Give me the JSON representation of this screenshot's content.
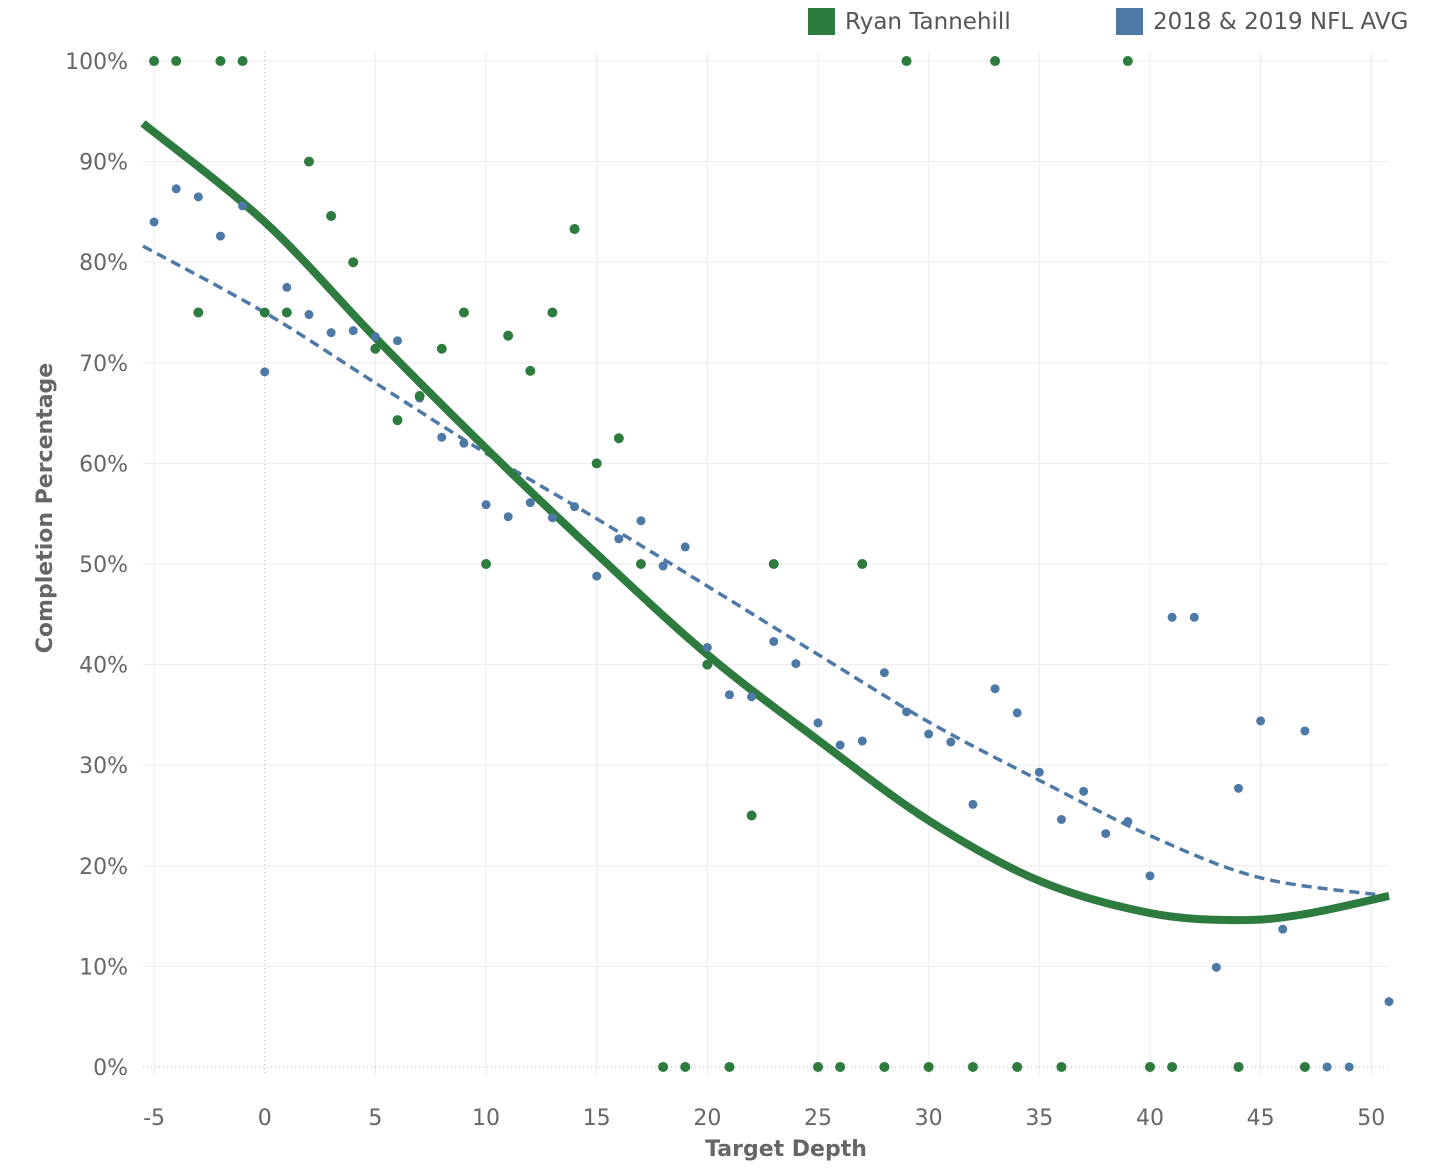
{
  "legend": {
    "items": [
      {
        "label": "Ryan Tannehill",
        "color": "#2e7b3f"
      },
      {
        "label": "2018 & 2019 NFL AVG",
        "color": "#4e79a7"
      }
    ]
  },
  "chart_data": {
    "type": "scatter",
    "xlabel": "Target Depth",
    "ylabel": "Completion Percentage",
    "xlim": [
      -5.5,
      50.8
    ],
    "ylim": [
      -0.9,
      100.9
    ],
    "xticks": [
      -5,
      0,
      5,
      10,
      15,
      20,
      25,
      30,
      35,
      40,
      45,
      50
    ],
    "xtick_labels": [
      "-5",
      "0",
      "5",
      "10",
      "15",
      "20",
      "25",
      "30",
      "35",
      "40",
      "45",
      "50"
    ],
    "yticks": [
      0,
      10,
      20,
      30,
      40,
      50,
      60,
      70,
      80,
      90,
      100
    ],
    "ytick_labels": [
      "0%",
      "10%",
      "20%",
      "30%",
      "40%",
      "50%",
      "60%",
      "70%",
      "80%",
      "90%",
      "100%"
    ],
    "grid": true,
    "legend_position": "top-right",
    "series": [
      {
        "name": "Ryan Tannehill",
        "color": "#2e7b3f",
        "points": [
          [
            -5,
            100
          ],
          [
            -4,
            100
          ],
          [
            -3,
            75
          ],
          [
            -2,
            100
          ],
          [
            -1,
            100
          ],
          [
            0,
            75
          ],
          [
            1,
            75
          ],
          [
            2,
            90
          ],
          [
            3,
            84.6
          ],
          [
            4,
            80
          ],
          [
            5,
            71.4
          ],
          [
            6,
            64.3
          ],
          [
            7,
            66.7
          ],
          [
            8,
            71.4
          ],
          [
            9,
            75
          ],
          [
            10,
            50
          ],
          [
            11,
            72.7
          ],
          [
            12,
            69.2
          ],
          [
            13,
            75
          ],
          [
            14,
            83.3
          ],
          [
            15,
            60
          ],
          [
            16,
            62.5
          ],
          [
            17,
            50
          ],
          [
            18,
            0
          ],
          [
            19,
            0
          ],
          [
            20,
            40
          ],
          [
            21,
            0
          ],
          [
            22,
            25
          ],
          [
            23,
            50
          ],
          [
            25,
            0
          ],
          [
            26,
            0
          ],
          [
            27,
            50
          ],
          [
            28,
            0
          ],
          [
            29,
            100
          ],
          [
            30,
            0
          ],
          [
            32,
            0
          ],
          [
            33,
            100
          ],
          [
            34,
            0
          ],
          [
            36,
            0
          ],
          [
            39,
            100
          ],
          [
            40,
            0
          ],
          [
            41,
            0
          ],
          [
            44,
            0
          ],
          [
            47,
            0
          ]
        ],
        "trend": {
          "style": "solid",
          "points": [
            [
              -5.5,
              93.8
            ],
            [
              0,
              84
            ],
            [
              5,
              72.5
            ],
            [
              10,
              61.5
            ],
            [
              15,
              51
            ],
            [
              20,
              41
            ],
            [
              25,
              32.5
            ],
            [
              30,
              24.5
            ],
            [
              35,
              18.5
            ],
            [
              40,
              15.3
            ],
            [
              44,
              14.6
            ],
            [
              47,
              15.2
            ],
            [
              50.8,
              17
            ]
          ]
        }
      },
      {
        "name": "2018 & 2019 NFL AVG",
        "color": "#4e79a7",
        "points": [
          [
            -5,
            84
          ],
          [
            -4,
            87.3
          ],
          [
            -3,
            86.5
          ],
          [
            -2,
            82.6
          ],
          [
            -1,
            85.6
          ],
          [
            0,
            69.1
          ],
          [
            1,
            77.5
          ],
          [
            2,
            74.8
          ],
          [
            3,
            73
          ],
          [
            4,
            73.2
          ],
          [
            5,
            72.6
          ],
          [
            6,
            72.2
          ],
          [
            7,
            66.5
          ],
          [
            8,
            62.6
          ],
          [
            9,
            62
          ],
          [
            10,
            55.9
          ],
          [
            11,
            54.7
          ],
          [
            12,
            56.1
          ],
          [
            13,
            54.6
          ],
          [
            14,
            55.7
          ],
          [
            15,
            48.8
          ],
          [
            16,
            52.5
          ],
          [
            17,
            54.3
          ],
          [
            18,
            49.8
          ],
          [
            19,
            51.7
          ],
          [
            20,
            41.7
          ],
          [
            21,
            37
          ],
          [
            22,
            36.8
          ],
          [
            23,
            42.3
          ],
          [
            24,
            40.1
          ],
          [
            25,
            34.2
          ],
          [
            26,
            32
          ],
          [
            27,
            32.4
          ],
          [
            28,
            39.2
          ],
          [
            29,
            35.3
          ],
          [
            30,
            33.1
          ],
          [
            31,
            32.3
          ],
          [
            32,
            26.1
          ],
          [
            33,
            37.6
          ],
          [
            34,
            35.2
          ],
          [
            35,
            29.3
          ],
          [
            36,
            24.6
          ],
          [
            37,
            27.4
          ],
          [
            38,
            23.2
          ],
          [
            39,
            24.4
          ],
          [
            40,
            19
          ],
          [
            41,
            44.7
          ],
          [
            42,
            44.7
          ],
          [
            43,
            9.9
          ],
          [
            44,
            27.7
          ],
          [
            45,
            34.4
          ],
          [
            46,
            13.7
          ],
          [
            47,
            33.4
          ],
          [
            48,
            0
          ],
          [
            49,
            0
          ],
          [
            50.8,
            6.5
          ]
        ],
        "trend": {
          "style": "dashed",
          "points": [
            [
              -5.5,
              81.6
            ],
            [
              0,
              75
            ],
            [
              5,
              68
            ],
            [
              10,
              61
            ],
            [
              15,
              54.5
            ],
            [
              20,
              47.8
            ],
            [
              25,
              41
            ],
            [
              30,
              34.3
            ],
            [
              35,
              28.5
            ],
            [
              40,
              23
            ],
            [
              45,
              18.8
            ],
            [
              50.8,
              17
            ]
          ]
        }
      }
    ]
  }
}
